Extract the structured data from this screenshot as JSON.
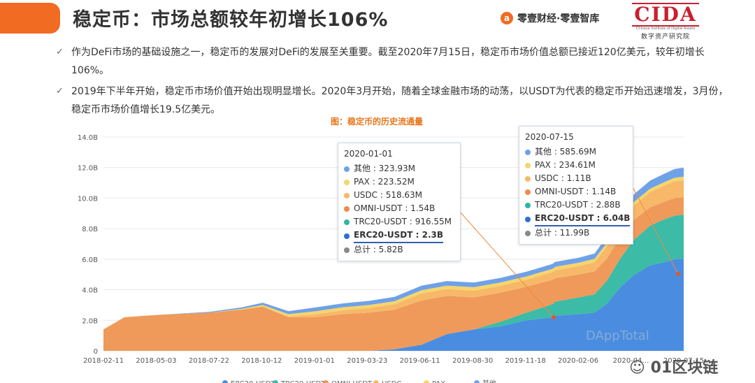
{
  "header": {
    "title": "稳定币：市场总额较年初增长106%",
    "brand": "零壹财经·零壹智库",
    "brand_icon": "logo-icon",
    "cida_logo": "CIDA",
    "cida_en": "Chinese Institute of Digital Assets",
    "cida_cn": "数字资产研究院",
    "accent": "#f26b22"
  },
  "bullets": [
    "作为DeFi市场的基础设施之一，稳定币的发展对DeFi的发展至关重要。截至2020年7月15日，稳定币市场价值总额已接近120亿美元，较年初增长106%。",
    "2019年下半年开始，稳定币市场价值开始出现明显增长。2020年3月开始，随着全球金融市场的动荡，以USDT为代表的稳定币开始迅速增发，3月份，稳定币市场价值增长19.5亿美元。"
  ],
  "chart_data": {
    "type": "area",
    "title": "图：稳定币的历史流通量",
    "stacked": true,
    "y_unit": "B",
    "ylim": [
      0,
      14
    ],
    "y_ticks": [
      "0",
      "2.0B",
      "4.0B",
      "6.0B",
      "8.0B",
      "10.0B",
      "12.0B",
      "14.0B"
    ],
    "x_ticks": [
      "2018-02-11",
      "2018-05-03",
      "2018-07-22",
      "2018-10-12",
      "2019-01-01",
      "2019-03-23",
      "2019-06-11",
      "2019-08-30",
      "2019-11-18",
      "2020-02-06",
      "2020-04…",
      "2020-07-15"
    ],
    "grid": true,
    "watermark": "DAppTotal",
    "legend_position": "bottom",
    "x": [
      "2018-02-11",
      "2018-03-15",
      "2018-05-03",
      "2018-07-22",
      "2018-09-10",
      "2018-10-12",
      "2018-11-20",
      "2019-01-01",
      "2019-02-10",
      "2019-03-23",
      "2019-05-01",
      "2019-06-11",
      "2019-07-20",
      "2019-08-30",
      "2019-10-09",
      "2019-11-18",
      "2019-12-28",
      "2020-01-01",
      "2020-02-06",
      "2020-03-01",
      "2020-03-20",
      "2020-04-10",
      "2020-05-01",
      "2020-05-25",
      "2020-06-15",
      "2020-07-01",
      "2020-07-15"
    ],
    "series": [
      {
        "name": "ERC20-USDT",
        "color": "#4a8de0",
        "values": [
          0,
          0,
          0,
          0,
          0,
          0,
          0,
          0,
          0,
          0,
          0.1,
          0.4,
          1.1,
          1.4,
          1.6,
          2.0,
          2.2,
          2.3,
          2.4,
          2.5,
          3.1,
          4.2,
          5.0,
          5.6,
          5.8,
          6.0,
          6.04
        ]
      },
      {
        "name": "TRC20-USDT",
        "color": "#3cbba7",
        "values": [
          0,
          0,
          0,
          0,
          0,
          0,
          0,
          0,
          0,
          0,
          0,
          0,
          0,
          0,
          0.3,
          0.5,
          0.85,
          0.92,
          1.1,
          1.2,
          1.5,
          1.9,
          2.3,
          2.6,
          2.8,
          2.85,
          2.88
        ]
      },
      {
        "name": "OMNI-USDT",
        "color": "#ef9a5a",
        "values": [
          1.4,
          2.2,
          2.35,
          2.5,
          2.7,
          2.9,
          2.2,
          2.2,
          2.4,
          2.5,
          2.6,
          2.9,
          2.5,
          2.1,
          1.9,
          1.7,
          1.6,
          1.54,
          1.5,
          1.5,
          1.45,
          1.4,
          1.3,
          1.2,
          1.16,
          1.15,
          1.14
        ]
      },
      {
        "name": "USDC",
        "color": "#f7b86a",
        "values": [
          0,
          0,
          0,
          0,
          0,
          0,
          0.05,
          0.2,
          0.25,
          0.3,
          0.35,
          0.45,
          0.45,
          0.45,
          0.45,
          0.45,
          0.5,
          0.52,
          0.55,
          0.6,
          0.8,
          0.9,
          0.95,
          1.0,
          1.05,
          1.1,
          1.11
        ]
      },
      {
        "name": "PAX",
        "color": "#f6d56a",
        "values": [
          0,
          0,
          0,
          0,
          0.05,
          0.1,
          0.15,
          0.2,
          0.2,
          0.2,
          0.2,
          0.22,
          0.22,
          0.22,
          0.22,
          0.22,
          0.22,
          0.22,
          0.22,
          0.22,
          0.23,
          0.23,
          0.23,
          0.23,
          0.23,
          0.23,
          0.23
        ]
      },
      {
        "name": "其他",
        "color": "#6fa1e8",
        "values": [
          0,
          0,
          0,
          0.05,
          0.1,
          0.15,
          0.2,
          0.25,
          0.25,
          0.27,
          0.28,
          0.3,
          0.3,
          0.3,
          0.3,
          0.31,
          0.32,
          0.32,
          0.33,
          0.35,
          0.4,
          0.45,
          0.5,
          0.52,
          0.55,
          0.57,
          0.59
        ]
      }
    ],
    "tooltips": [
      {
        "date": "2020-01-01",
        "rows": [
          {
            "label": "其他 : 323.93M",
            "color": "#6fa1e8"
          },
          {
            "label": "PAX : 223.52M",
            "color": "#f6d56a"
          },
          {
            "label": "USDC : 518.63M",
            "color": "#f7b86a"
          },
          {
            "label": "OMNI-USDT : 1.54B",
            "color": "#ef8a4a"
          },
          {
            "label": "TRC20-USDT : 916.55M",
            "color": "#2fb5a0"
          },
          {
            "label": "ERC20-USDT : 2.3B",
            "color": "#2f6fd0",
            "highlight": true
          },
          {
            "label": "总计 : 5.82B",
            "color": "#888888"
          }
        ]
      },
      {
        "date": "2020-07-15",
        "rows": [
          {
            "label": "其他 : 585.69M",
            "color": "#6fa1e8"
          },
          {
            "label": "PAX : 234.61M",
            "color": "#f6d56a"
          },
          {
            "label": "USDC : 1.11B",
            "color": "#f7b86a"
          },
          {
            "label": "OMNI-USDT : 1.14B",
            "color": "#ef8a4a"
          },
          {
            "label": "TRC20-USDT : 2.88B",
            "color": "#2fb5a0"
          },
          {
            "label": "ERC20-USDT : 6.04B",
            "color": "#2f6fd0",
            "highlight": true
          },
          {
            "label": "总计 : 11.99B",
            "color": "#888888"
          }
        ]
      }
    ]
  },
  "footer": {
    "watermark_text": "01区块链"
  }
}
